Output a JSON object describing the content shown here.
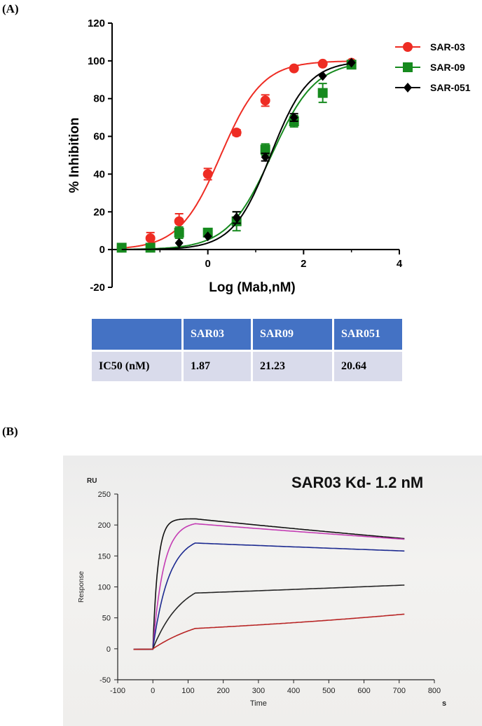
{
  "panel_a_label": "(A)",
  "panel_b_label": "(B)",
  "table": {
    "headers": [
      "",
      "SAR03",
      "SAR09",
      "SAR051"
    ],
    "row_label": "IC50 (nM)",
    "values": [
      "1.87",
      "21.23",
      "20.64"
    ]
  },
  "colors": {
    "sar03": "#ee2c23",
    "sar09": "#168a1e",
    "sar051": "#000000",
    "table_header": "#4472c4",
    "table_cell": "#d9dbeb"
  },
  "chart_data": [
    {
      "type": "scatter",
      "xlabel": "Log (Mab,nM)",
      "ylabel": "% Inhibition",
      "xlim": [
        -2,
        4
      ],
      "ylim": [
        -20,
        120
      ],
      "x_ticks": [
        "0",
        "2",
        "4"
      ],
      "y_ticks": [
        "-20",
        "0",
        "20",
        "40",
        "60",
        "80",
        "100",
        "120"
      ],
      "legend_position": "top-right",
      "grid": false,
      "fit": "sigmoidal dose-response curves",
      "series": [
        {
          "name": "SAR-03",
          "marker": "circle",
          "color": "#ee2c23",
          "x": [
            -1.8,
            -1.2,
            -0.6,
            0.0,
            0.6,
            1.2,
            1.8,
            2.4,
            3.0
          ],
          "y": [
            1,
            6,
            15,
            40,
            62,
            79,
            96,
            98.5,
            99
          ],
          "err": [
            1,
            3,
            4,
            3,
            1.5,
            3,
            1,
            1,
            1
          ],
          "curve": {
            "ec50_log": 0.27,
            "hill": 1.0,
            "bottom": 0,
            "top": 100
          }
        },
        {
          "name": "SAR-09",
          "marker": "square",
          "color": "#168a1e",
          "x": [
            -1.8,
            -1.2,
            -0.6,
            0.0,
            0.6,
            1.2,
            1.8,
            2.4,
            3.0
          ],
          "y": [
            1,
            1,
            9,
            9,
            15,
            53,
            68,
            83,
            98
          ],
          "err": [
            1,
            1,
            3,
            1,
            5,
            3,
            3,
            5,
            2
          ],
          "curve": {
            "ec50_log": 1.33,
            "hill": 0.95,
            "bottom": 0,
            "top": 100
          }
        },
        {
          "name": "SAR-051",
          "marker": "diamond",
          "color": "#000000",
          "x": [
            -0.6,
            0.0,
            0.6,
            1.2,
            1.8,
            2.4,
            3.0
          ],
          "y": [
            3.5,
            7,
            17,
            49,
            70,
            92,
            99
          ],
          "err": [
            1,
            1,
            3,
            2,
            2,
            1,
            1
          ],
          "curve": {
            "ec50_log": 1.31,
            "hill": 1.1,
            "bottom": 0,
            "top": 100
          }
        }
      ]
    },
    {
      "type": "line",
      "title": "SAR03 Kd- 1.2 nM",
      "xlabel": "Time",
      "x_unit": "s",
      "ylabel": "Response",
      "y_unit": "RU",
      "xlim": [
        -100,
        800
      ],
      "ylim": [
        -50,
        250
      ],
      "x_ticks": [
        "-100",
        "0",
        "100",
        "200",
        "300",
        "400",
        "500",
        "600",
        "700",
        "800"
      ],
      "y_ticks": [
        "-50",
        "0",
        "50",
        "100",
        "150",
        "200",
        "250"
      ],
      "grid": false,
      "association_end": 120,
      "x_end": 715,
      "series": [
        {
          "color": "#101010",
          "rmax": 210,
          "kobs": 0.07,
          "end": 178
        },
        {
          "color": "#c43cb4",
          "rmax": 206,
          "kobs": 0.033,
          "end": 177
        },
        {
          "color": "#1c2a90",
          "rmax": 184,
          "kobs": 0.022,
          "end": 158
        },
        {
          "color": "#262626",
          "rmax": 118,
          "kobs": 0.012,
          "end": 103
        },
        {
          "color": "#b82424",
          "rmax": 64,
          "kobs": 0.006,
          "end": 56
        }
      ]
    }
  ]
}
